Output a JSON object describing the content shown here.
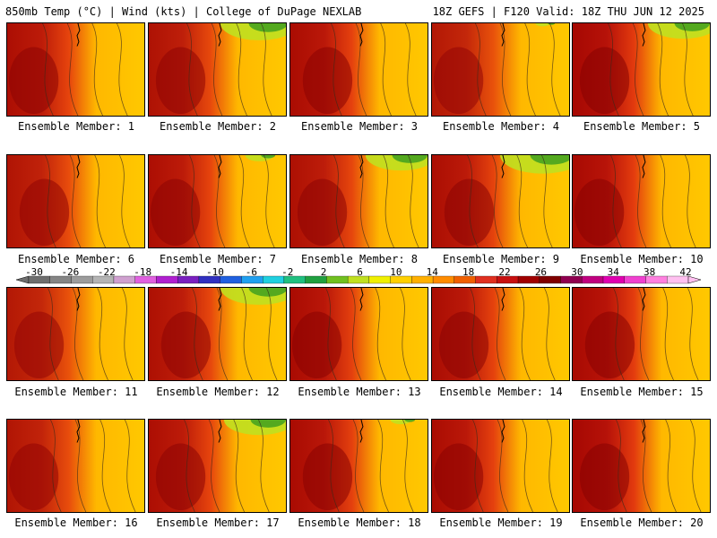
{
  "header": {
    "left": "850mb Temp (°C) | Wind (kts) | College of DuPage NEXLAB",
    "right": "18Z GEFS | F120 Valid: 18Z THU JUN 12 2025"
  },
  "members": [
    {
      "label": "Ensemble Member: 1",
      "warmth": 0.82,
      "cool_top": 0.0
    },
    {
      "label": "Ensemble Member: 2",
      "warmth": 0.78,
      "cool_top": 0.55
    },
    {
      "label": "Ensemble Member: 3",
      "warmth": 0.85,
      "cool_top": 0.0
    },
    {
      "label": "Ensemble Member: 4",
      "warmth": 0.7,
      "cool_top": 0.1
    },
    {
      "label": "Ensemble Member: 5",
      "warmth": 0.9,
      "cool_top": 0.5
    },
    {
      "label": "Ensemble Member: 6",
      "warmth": 0.75,
      "cool_top": 0.0
    },
    {
      "label": "Ensemble Member: 7",
      "warmth": 0.82,
      "cool_top": 0.2
    },
    {
      "label": "Ensemble Member: 8",
      "warmth": 0.8,
      "cool_top": 0.5
    },
    {
      "label": "Ensemble Member: 9",
      "warmth": 0.83,
      "cool_top": 0.6
    },
    {
      "label": "Ensemble Member: 10",
      "warmth": 0.88,
      "cool_top": 0.0
    },
    {
      "label": "Ensemble Member: 11",
      "warmth": 0.7,
      "cool_top": 0.0
    },
    {
      "label": "Ensemble Member: 12",
      "warmth": 0.8,
      "cool_top": 0.55
    },
    {
      "label": "Ensemble Member: 13",
      "warmth": 0.86,
      "cool_top": 0.0
    },
    {
      "label": "Ensemble Member: 14",
      "warmth": 0.84,
      "cool_top": 0.0
    },
    {
      "label": "Ensemble Member: 15",
      "warmth": 0.88,
      "cool_top": 0.0
    },
    {
      "label": "Ensemble Member: 16",
      "warmth": 0.74,
      "cool_top": 0.0
    },
    {
      "label": "Ensemble Member: 17",
      "warmth": 0.82,
      "cool_top": 0.5
    },
    {
      "label": "Ensemble Member: 18",
      "warmth": 0.86,
      "cool_top": 0.15
    },
    {
      "label": "Ensemble Member: 19",
      "warmth": 0.85,
      "cool_top": 0.0
    },
    {
      "label": "Ensemble Member: 20",
      "warmth": 0.9,
      "cool_top": 0.0
    }
  ],
  "colorbar": {
    "ticks": [
      "-30",
      "-26",
      "-22",
      "-18",
      "-14",
      "-10",
      "-6",
      "-2",
      "2",
      "6",
      "10",
      "14",
      "18",
      "22",
      "26",
      "30",
      "34",
      "38",
      "42"
    ],
    "colors": [
      "#6e6e6e",
      "#858585",
      "#9c9c9c",
      "#b4b4b4",
      "#cfa0cf",
      "#e060e0",
      "#b020d0",
      "#7a20c0",
      "#3030c0",
      "#2060e0",
      "#20a0f0",
      "#20d0e0",
      "#20c080",
      "#20a040",
      "#70c020",
      "#c0e020",
      "#f0f000",
      "#ffd000",
      "#ffb000",
      "#ff8c00",
      "#f06000",
      "#e03020",
      "#c81010",
      "#a00000",
      "#800000",
      "#900050",
      "#c00080",
      "#e000b0",
      "#f040d0",
      "#ff80e0",
      "#ffc0f0"
    ]
  }
}
